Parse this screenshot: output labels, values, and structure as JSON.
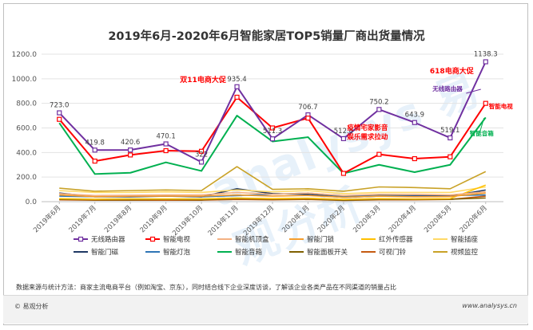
{
  "title": "2019年6月-2020年6月智能家居TOP5销量厂商出货量情况",
  "note": "数据来源与统计方法：商家主流电商平台（例如淘宝、京东），同时结合线下企业深度访谈，了解该企业各类产品在不同渠道的销量占比",
  "copyright": "© 易观分析",
  "website": "www.analysys.cn",
  "watermark": "analysys 易观分析",
  "chart_data": {
    "type": "line",
    "categories": [
      "2019年6月",
      "2019年7月",
      "2019年8月",
      "2019年9月",
      "2019年10月",
      "2019年11月",
      "2019年12月",
      "2020年1月",
      "2020年2月",
      "2020年3月",
      "2020年4月",
      "2020年5月",
      "2020年6月"
    ],
    "ylim": [
      0,
      1200
    ],
    "yticks": [
      "0.0",
      "200.0",
      "400.0",
      "600.0",
      "800.0",
      "1000.0",
      "1200.0"
    ],
    "grid": true,
    "legend_position": "bottom",
    "series": [
      {
        "name": "无线路由器",
        "color": "#7030a0",
        "marker": "square",
        "values": [
          723.0,
          419.8,
          420.6,
          470.1,
          322,
          935.4,
          511.3,
          706.7,
          512.8,
          750.2,
          643.9,
          519.1,
          1138.3
        ]
      },
      {
        "name": "智能电视",
        "color": "#ff0000",
        "marker": "square",
        "values": [
          670,
          330,
          380,
          415,
          410,
          850,
          600,
          680,
          230,
          385,
          350,
          365,
          800
        ]
      },
      {
        "name": "智能机顶盒",
        "color": "#f4b183",
        "marker": "none",
        "values": [
          65,
          50,
          52,
          55,
          55,
          75,
          60,
          70,
          50,
          60,
          60,
          55,
          80
        ]
      },
      {
        "name": "智能门锁",
        "color": "#f59d2c",
        "marker": "none",
        "values": [
          55,
          40,
          45,
          45,
          45,
          55,
          45,
          50,
          35,
          45,
          40,
          42,
          70
        ]
      },
      {
        "name": "红外传感器",
        "color": "#ffc000",
        "marker": "none",
        "values": [
          25,
          20,
          22,
          22,
          22,
          30,
          25,
          28,
          18,
          25,
          22,
          25,
          135
        ]
      },
      {
        "name": "智能插座",
        "color": "#ffd966",
        "marker": "none",
        "values": [
          90,
          75,
          75,
          80,
          75,
          95,
          80,
          90,
          65,
          75,
          75,
          75,
          120
        ]
      },
      {
        "name": "智能门磁",
        "color": "#1f3864",
        "marker": "none",
        "values": [
          70,
          40,
          40,
          45,
          40,
          105,
          65,
          60,
          35,
          45,
          45,
          45,
          95
        ]
      },
      {
        "name": "智能灯泡",
        "color": "#2e75b6",
        "marker": "none",
        "values": [
          45,
          40,
          42,
          48,
          40,
          50,
          60,
          70,
          45,
          50,
          48,
          50,
          55
        ]
      },
      {
        "name": "智能音箱",
        "color": "#00b050",
        "marker": "none",
        "values": [
          640,
          225,
          235,
          320,
          250,
          700,
          490,
          525,
          230,
          300,
          240,
          300,
          685
        ]
      },
      {
        "name": "智能面板开关",
        "color": "#7f6000",
        "marker": "none",
        "values": [
          20,
          15,
          15,
          18,
          15,
          25,
          20,
          22,
          12,
          18,
          18,
          20,
          30
        ]
      },
      {
        "name": "可视门铃",
        "color": "#c55a11",
        "marker": "none",
        "values": [
          15,
          12,
          12,
          12,
          12,
          18,
          15,
          18,
          10,
          15,
          15,
          18,
          45
        ]
      },
      {
        "name": "视频监控",
        "color": "#c9a227",
        "marker": "none",
        "values": [
          110,
          85,
          90,
          95,
          90,
          285,
          100,
          105,
          85,
          120,
          115,
          105,
          245
        ]
      }
    ],
    "data_labels": {
      "series": "无线路由器",
      "labels": [
        "723.0",
        "419.8",
        "420.6",
        "470.1",
        "322",
        "935.4",
        "511.3",
        "706.7",
        "512.8",
        "750.2",
        "643.9",
        "519.1",
        "1138.3"
      ]
    },
    "annotations": [
      {
        "text": "双11电商大促",
        "color": "#ff0000",
        "anchor": "2019年10月"
      },
      {
        "text": "疫情宅家影音娱乐需求拉动",
        "lines": [
          "疫情宅家影音",
          "娱乐需求拉动"
        ],
        "color": "#ff0000",
        "anchor": "2020年3月"
      },
      {
        "text": "618电商大促",
        "color": "#ff0000",
        "anchor": "2020年5月"
      },
      {
        "text": "无线路由器",
        "color": "#7030a0",
        "anchor": "2020年6月"
      },
      {
        "text": "智能电视",
        "color": "#ff0000",
        "anchor": "2020年6月"
      },
      {
        "text": "智能音箱",
        "color": "#00b050",
        "anchor": "2020年6月"
      }
    ]
  }
}
